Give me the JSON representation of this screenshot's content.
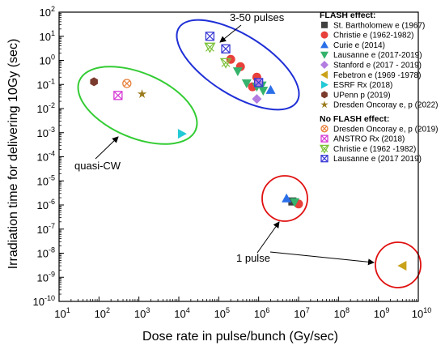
{
  "chart_data": {
    "type": "scatter",
    "xlabel": "Dose rate in pulse/bunch (Gy/sec)",
    "ylabel": "Irradiation time for delivering 10Gy (sec)",
    "x_scale": "log",
    "y_scale": "log",
    "xlim": [
      10,
      10000000000.0
    ],
    "ylim": [
      1e-10,
      100
    ],
    "x_ticks": [
      {
        "v": 10,
        "m": "10",
        "e": "1"
      },
      {
        "v": 100,
        "m": "10",
        "e": "2"
      },
      {
        "v": 1000,
        "m": "10",
        "e": "3"
      },
      {
        "v": 10000,
        "m": "10",
        "e": "4"
      },
      {
        "v": 100000,
        "m": "10",
        "e": "5"
      },
      {
        "v": 1000000,
        "m": "10",
        "e": "6"
      },
      {
        "v": 10000000,
        "m": "10",
        "e": "7"
      },
      {
        "v": 100000000,
        "m": "10",
        "e": "8"
      },
      {
        "v": 1000000000,
        "m": "10",
        "e": "9"
      },
      {
        "v": 10000000000,
        "m": "10",
        "e": "10"
      }
    ],
    "y_ticks": [
      {
        "v": 100,
        "m": "10",
        "e": "2"
      },
      {
        "v": 10,
        "m": "10",
        "e": "1"
      },
      {
        "v": 1,
        "m": "10",
        "e": "0"
      },
      {
        "v": 0.1,
        "m": "10",
        "e": "-1"
      },
      {
        "v": 0.01,
        "m": "10",
        "e": "-2"
      },
      {
        "v": 0.001,
        "m": "10",
        "e": "-3"
      },
      {
        "v": 0.0001,
        "m": "10",
        "e": "-4"
      },
      {
        "v": 1e-05,
        "m": "10",
        "e": "-5"
      },
      {
        "v": 1e-06,
        "m": "10",
        "e": "-6"
      },
      {
        "v": 1e-07,
        "m": "10",
        "e": "-7"
      },
      {
        "v": 1e-08,
        "m": "10",
        "e": "-8"
      },
      {
        "v": 1e-09,
        "m": "10",
        "e": "-9"
      },
      {
        "v": 1e-10,
        "m": "10",
        "e": "-10"
      }
    ],
    "grid": false,
    "legend_position": "top-right",
    "legend_groups": [
      {
        "title": "FLASH effect:",
        "series": [
          0,
          1,
          2,
          3,
          4,
          5,
          6,
          7,
          8
        ]
      },
      {
        "title": "No FLASH effect:",
        "series": [
          9,
          10,
          11,
          12
        ]
      }
    ],
    "series": [
      {
        "name": "St. Bartholomew e (1967)",
        "marker": "square",
        "color": "#404040",
        "points": [
          [
            7000000,
            1.4e-06
          ]
        ]
      },
      {
        "name": "Christie e (1962-1982)",
        "marker": "circle",
        "color": "#e8403a",
        "points": [
          [
            200000,
            1.1
          ],
          [
            350000,
            0.55
          ],
          [
            900000,
            0.2
          ],
          [
            700000,
            0.08
          ],
          [
            10000000,
            1.1e-06
          ]
        ]
      },
      {
        "name": "Curie e (2014)",
        "marker": "triangle-up",
        "color": "#2b6fe8",
        "points": [
          [
            2000000,
            0.06
          ],
          [
            5000000,
            1.9e-06
          ]
        ]
      },
      {
        "name": "Lausanne e (2017-2019)",
        "marker": "triangle-down",
        "color": "#35b26b",
        "points": [
          [
            300000,
            0.35
          ],
          [
            500000,
            0.11
          ],
          [
            900000,
            0.08
          ],
          [
            1200000,
            0.09
          ],
          [
            1300000,
            0.055
          ],
          [
            8000000,
            1.3e-06
          ]
        ]
      },
      {
        "name": "Stanford e (2017 - 2019)",
        "marker": "diamond",
        "color": "#b27ce0",
        "points": [
          [
            900000,
            0.025
          ],
          [
            1000000,
            0.12
          ]
        ]
      },
      {
        "name": "Febetron e (1969 -1978)",
        "marker": "triangle-left",
        "color": "#c9a21a",
        "points": [
          [
            4000000000,
            3e-09
          ]
        ]
      },
      {
        "name": "ESRF Rx (2018)",
        "marker": "triangle-right",
        "color": "#22c9d6",
        "points": [
          [
            12000,
            0.0009
          ]
        ]
      },
      {
        "name": "UPenn p (2019)",
        "marker": "hexagon",
        "color": "#7b3b2d",
        "points": [
          [
            75,
            0.13
          ]
        ]
      },
      {
        "name": "Dresden Oncoray e, p (2022)",
        "marker": "star",
        "color": "#9a7a1c",
        "points": [
          [
            1200,
            0.04
          ]
        ]
      },
      {
        "name": "Dresden Oncoray e, p (2019)",
        "marker": "circle-x",
        "color": "#e8803a",
        "points": [
          [
            500,
            0.11
          ]
        ]
      },
      {
        "name": "ANSTRO Rx (2018)",
        "marker": "square-x",
        "color": "#d63ad6",
        "points": [
          [
            300,
            0.035
          ]
        ]
      },
      {
        "name": "Christie e (1962 -1982)",
        "marker": "triangle-x",
        "color": "#7cc23a",
        "points": [
          [
            60000,
            3.5
          ],
          [
            150000,
            0.8
          ]
        ]
      },
      {
        "name": "Lausanne e (2017 2019)",
        "marker": "square-x",
        "color": "#3a3ad6",
        "points": [
          [
            60000,
            10
          ],
          [
            150000,
            3.0
          ],
          [
            1000000,
            0.12
          ]
        ]
      }
    ],
    "annotations": [
      {
        "text": "3-50 pulses"
      },
      {
        "text": "quasi-CW"
      },
      {
        "text": "1 pulse"
      }
    ]
  }
}
